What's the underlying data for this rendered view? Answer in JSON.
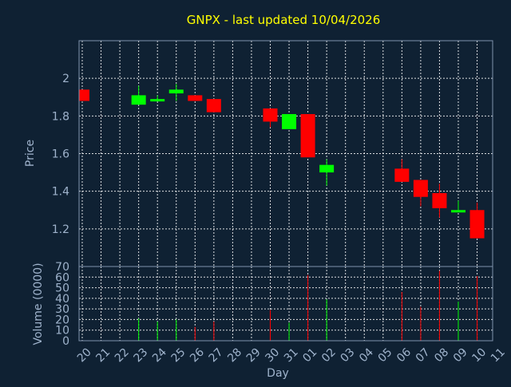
{
  "chart_data": {
    "type": "candlestick",
    "title": "GNPX - last updated 10/04/2026",
    "xlabel": "Day",
    "price_ylabel": "Price",
    "volume_ylabel": "Volume (0000)",
    "price_yticks": [
      1.2,
      1.4,
      1.6,
      1.8,
      2
    ],
    "price_ytick_labels": [
      "1.2",
      "1.4",
      "1.6",
      "1.8",
      "2"
    ],
    "price_ylim": [
      1.0,
      2.2
    ],
    "volume_yticks": [
      0,
      10,
      20,
      30,
      40,
      50,
      60,
      70
    ],
    "volume_ytick_labels": [
      "0",
      "10",
      "20",
      "30",
      "40",
      "50",
      "60",
      "70"
    ],
    "volume_ylim": [
      0,
      70
    ],
    "x_tick_labels": [
      "20",
      "21",
      "22",
      "23",
      "24",
      "25",
      "26",
      "27",
      "28",
      "29",
      "30",
      "31",
      "01",
      "02",
      "03",
      "04",
      "05",
      "06",
      "07",
      "08",
      "09",
      "10",
      "11"
    ],
    "colors": {
      "up": "#00ff00",
      "down": "#ff0000",
      "background": "#0f2133",
      "grid": "#ffffff",
      "title": "#ffff00",
      "label": "#9fb3cc"
    },
    "candles": [
      {
        "day": "20",
        "open": 1.94,
        "close": 1.88,
        "high": 1.94,
        "low": 1.88,
        "volume": 0
      },
      {
        "day": "23",
        "open": 1.86,
        "close": 1.91,
        "high": 1.96,
        "low": 1.86,
        "volume": 21
      },
      {
        "day": "24",
        "open": 1.88,
        "close": 1.89,
        "high": 1.91,
        "low": 1.88,
        "volume": 18
      },
      {
        "day": "25",
        "open": 1.92,
        "close": 1.94,
        "high": 1.97,
        "low": 1.88,
        "volume": 20
      },
      {
        "day": "26",
        "open": 1.91,
        "close": 1.88,
        "high": 1.91,
        "low": 1.88,
        "volume": 13
      },
      {
        "day": "27",
        "open": 1.89,
        "close": 1.82,
        "high": 1.89,
        "low": 1.82,
        "volume": 18
      },
      {
        "day": "30",
        "open": 1.84,
        "close": 1.77,
        "high": 1.84,
        "low": 1.74,
        "volume": 29
      },
      {
        "day": "31",
        "open": 1.73,
        "close": 1.81,
        "high": 1.81,
        "low": 1.73,
        "volume": 17
      },
      {
        "day": "01",
        "open": 1.81,
        "close": 1.58,
        "high": 1.81,
        "low": 1.58,
        "volume": 62
      },
      {
        "day": "02",
        "open": 1.5,
        "close": 1.54,
        "high": 1.57,
        "low": 1.43,
        "volume": 39
      },
      {
        "day": "06",
        "open": 1.52,
        "close": 1.45,
        "high": 1.57,
        "low": 1.45,
        "volume": 46
      },
      {
        "day": "07",
        "open": 1.46,
        "close": 1.37,
        "high": 1.46,
        "low": 1.32,
        "volume": 32
      },
      {
        "day": "08",
        "open": 1.39,
        "close": 1.31,
        "high": 1.44,
        "low": 1.26,
        "volume": 66
      },
      {
        "day": "09",
        "open": 1.29,
        "close": 1.3,
        "high": 1.35,
        "low": 1.29,
        "volume": 37
      },
      {
        "day": "10",
        "open": 1.3,
        "close": 1.15,
        "high": 1.34,
        "low": 1.15,
        "volume": 61
      }
    ]
  }
}
